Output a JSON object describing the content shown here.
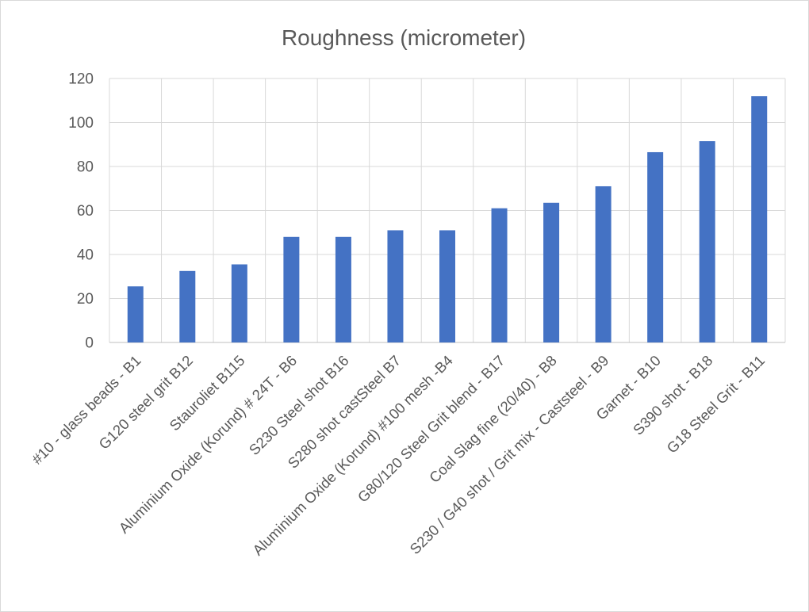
{
  "chart_data": {
    "type": "bar",
    "title": "Roughness (micrometer)",
    "xlabel": "",
    "ylabel": "",
    "ylim": [
      0,
      120
    ],
    "yticks": [
      0,
      20,
      40,
      60,
      80,
      100,
      120
    ],
    "grid": true,
    "legend": "none",
    "bar_color": "#4472c4",
    "categories": [
      "#10 - glass beads - B1",
      "G120 steel grit B12",
      "Stauroliet B115",
      "Aluminium Oxide (Korund) # 24T - B6",
      "S230 Steel shot B16",
      "S280 shot castSteel B7",
      "Aluminium Oxide (Korund) #100 mesh -B4",
      "G80/120 Steel Grit blend - B17",
      "Coal Slag fine (20/40) - B8",
      "S230 / G40 shot / Grit mix - Caststeel - B9",
      "Garnet - B10",
      "S390 shot - B18",
      "G18 Steel Grit - B11"
    ],
    "values": [
      25.5,
      32.5,
      35.5,
      48,
      48,
      51,
      51,
      61,
      63.5,
      71,
      86.5,
      91.5,
      112
    ]
  }
}
